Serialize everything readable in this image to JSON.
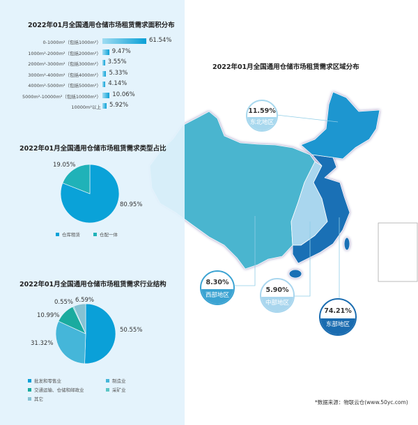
{
  "chart_data": [
    {
      "type": "bar",
      "title": "2022年01月全国通用仓储市场租赁需求面积分布",
      "orientation": "horizontal",
      "categories": [
        "0-1000m²（包括1000m²）",
        "1000m²-2000m²（包括2000m²）",
        "2000m²-3000m²（包括3000m²）",
        "3000m²-4000m²（包括4000m²）",
        "4000m²-5000m²（包括5000m²）",
        "5000m²-10000m²（包括10000m²）",
        "10000m²以上"
      ],
      "values": [
        61.54,
        9.47,
        3.55,
        5.33,
        4.14,
        10.06,
        5.92
      ],
      "labels": [
        "61.54%",
        "9.47%",
        "3.55%",
        "5.33%",
        "4.14%",
        "10.06%",
        "5.92%"
      ],
      "unit": "%",
      "bar_color": "#0aa0d6"
    },
    {
      "type": "pie",
      "title": "2022年01月全国通用仓储市场租赁需求类型占比",
      "slices": [
        {
          "name": "仓库租赁",
          "value": 80.95,
          "label": "80.95%",
          "color": "#0aa2d8"
        },
        {
          "name": "仓配一体",
          "value": 19.05,
          "label": "19.05%",
          "color": "#20b2b8"
        }
      ],
      "legend": "bottom"
    },
    {
      "type": "pie",
      "title": "2022年01月全国通用仓储市场租赁需求行业结构",
      "slices": [
        {
          "name": "批发和零售业",
          "value": 50.55,
          "label": "50.55%",
          "color": "#0aa0d8"
        },
        {
          "name": "制造业",
          "value": 31.32,
          "label": "31.32%",
          "color": "#45b6d9"
        },
        {
          "name": "交通运输、仓储和邮政业",
          "value": 10.99,
          "label": "10.99%",
          "color": "#1aab9f"
        },
        {
          "name": "采矿业",
          "value": 0.55,
          "label": "0.55%",
          "color": "#5cc6c6"
        },
        {
          "name": "其它",
          "value": 6.59,
          "label": "6.59%",
          "color": "#86c2d3"
        }
      ],
      "legend": "bottom"
    }
  ],
  "map": {
    "title": "2022年01月全国通用仓储市场租赁需求区域分布",
    "regions": [
      {
        "name": "东北地区",
        "value": "11.59%",
        "color": "#1d96d0",
        "bubble_color": "#a8d8ee"
      },
      {
        "name": "西部地区",
        "value": "8.30%",
        "color": "#4ab5cf",
        "bubble_color": "#3ba3d2"
      },
      {
        "name": "中部地区",
        "value": "5.90%",
        "color": "#a9d6ee",
        "bubble_color": "#a9d6ee"
      },
      {
        "name": "东部地区",
        "value": "74.21%",
        "color": "#1a70b5",
        "bubble_color": "#1a6cb0"
      }
    ]
  },
  "source": "*数据来源：物联云仓(www.50yc.com)"
}
